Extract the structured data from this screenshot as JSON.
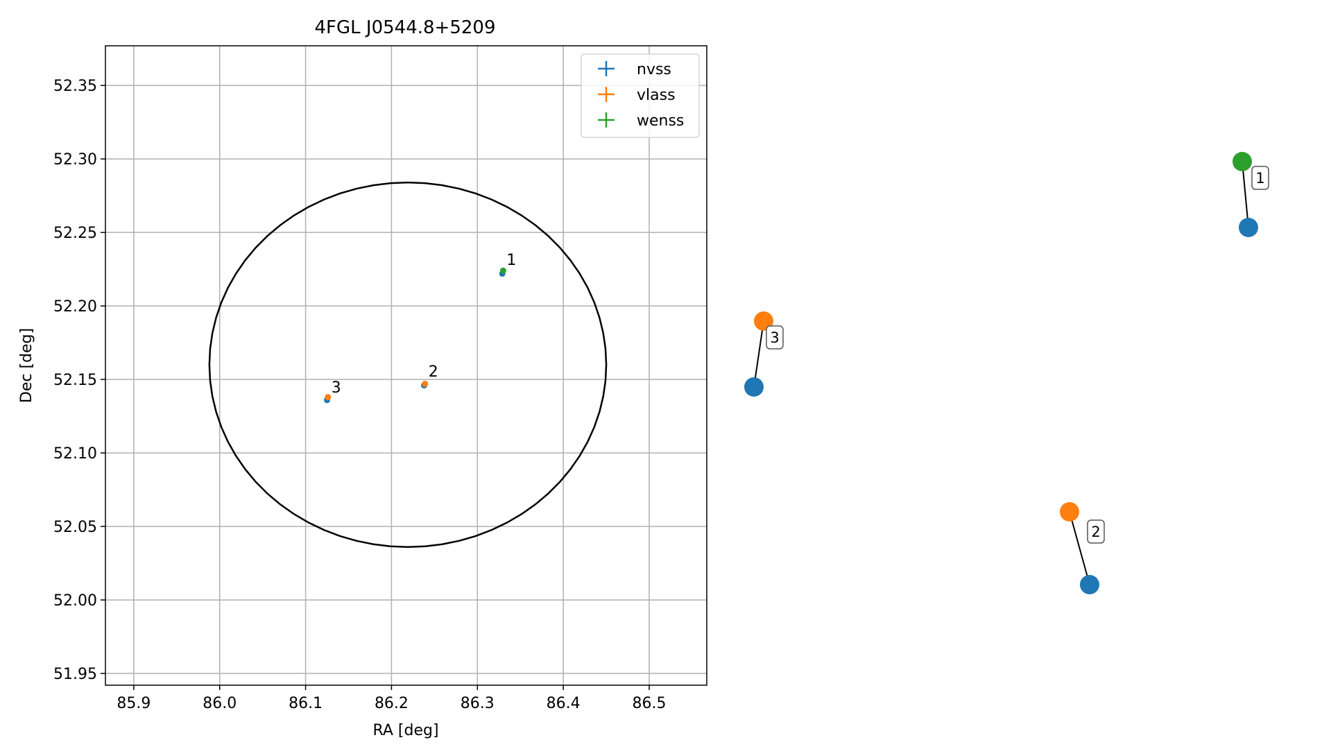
{
  "chart_data": {
    "type": "scatter",
    "title": "4FGL J0544.8+5209",
    "xlabel": "RA [deg]",
    "ylabel": "Dec [deg]",
    "xlim": [
      85.867,
      86.567
    ],
    "ylim": [
      51.942,
      52.377
    ],
    "xticks": [
      "85.9",
      "86.0",
      "86.1",
      "86.2",
      "86.3",
      "86.4",
      "86.5"
    ],
    "yticks": [
      "51.95",
      "52.00",
      "52.05",
      "52.10",
      "52.15",
      "52.20",
      "52.25",
      "52.30",
      "52.35"
    ],
    "grid": true,
    "legend_position": "top-right",
    "colors": {
      "nvss": "#1f77b4",
      "vlass": "#ff7f0e",
      "wenss": "#2ca02c",
      "ellipse": "#000000"
    },
    "ellipse": {
      "center": [
        86.219,
        52.16
      ],
      "ra_half_width": 0.231,
      "dec_half_height": 0.124
    },
    "series": [
      {
        "name": "nvss",
        "points": [
          {
            "x": 86.329,
            "y": 52.222
          },
          {
            "x": 86.238,
            "y": 52.146
          },
          {
            "x": 86.125,
            "y": 52.136
          }
        ]
      },
      {
        "name": "vlass",
        "points": [
          {
            "x": 86.239,
            "y": 52.147
          },
          {
            "x": 86.126,
            "y": 52.138
          }
        ]
      },
      {
        "name": "wenss",
        "points": [
          {
            "x": 86.33,
            "y": 52.224
          }
        ]
      }
    ],
    "annotations": [
      {
        "text": "1",
        "x": 86.334,
        "y": 52.228
      },
      {
        "text": "2",
        "x": 86.243,
        "y": 52.152
      },
      {
        "text": "3",
        "x": 86.13,
        "y": 52.141
      }
    ],
    "zoom_insets": [
      {
        "label": "1",
        "points": [
          {
            "series": "wenss"
          },
          {
            "series": "nvss"
          }
        ]
      },
      {
        "label": "2",
        "points": [
          {
            "series": "vlass"
          },
          {
            "series": "nvss"
          }
        ]
      },
      {
        "label": "3",
        "points": [
          {
            "series": "vlass"
          },
          {
            "series": "nvss"
          }
        ]
      }
    ]
  }
}
